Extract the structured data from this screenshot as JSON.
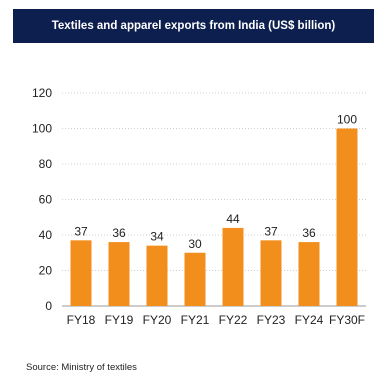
{
  "header": {
    "title": "Textiles and apparel exports from India (US$ billion)"
  },
  "footer": {
    "source": "Source: Ministry of textiles"
  },
  "colors": {
    "bar": "#f28e1c",
    "header_bg": "#0d1f4f",
    "grid": "#cfcfcf"
  },
  "chart_data": {
    "type": "bar",
    "title": "Textiles and apparel exports from India (US$ billion)",
    "categories": [
      "FY18",
      "FY19",
      "FY20",
      "FY21",
      "FY22",
      "FY23",
      "FY24",
      "FY30F"
    ],
    "values": [
      37,
      36,
      34,
      30,
      44,
      37,
      36,
      100
    ],
    "ylim": [
      0,
      120
    ],
    "yticks": [
      0,
      20,
      40,
      60,
      80,
      100,
      120
    ],
    "grid": true,
    "xlabel": "",
    "ylabel": ""
  }
}
